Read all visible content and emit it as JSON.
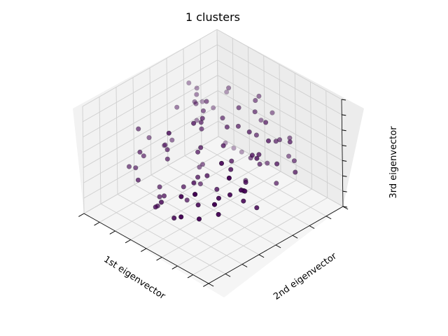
{
  "chart_data": {
    "type": "scatter",
    "projection": "3d",
    "title": "1 clusters",
    "xlabel": "1st eigenvector",
    "ylabel": "2nd eigenvector",
    "zlabel": "3rd eigenvector",
    "xlim": [
      -4,
      4
    ],
    "ylim": [
      -4,
      4
    ],
    "zlim": [
      -4,
      4
    ],
    "ticks": {
      "x": 8,
      "y": 8,
      "z": 7
    },
    "grid": true,
    "tick_labels_shown": false,
    "view": {
      "elev": 48,
      "azim": 134
    },
    "point_color": "#440154",
    "series": [
      {
        "x": [
          -2.1,
          -1.3,
          0.9,
          1.7,
          -0.4,
          2.3,
          -2.8,
          1.1,
          -0.9,
          0.2,
          2.9,
          -1.8,
          0.6,
          -2.5,
          1.4,
          -0.1,
          2.0,
          -1.1,
          0.4,
          -3.1,
          1.9,
          -0.6,
          2.6,
          -1.5,
          0.8,
          -2.3,
          1.2,
          -0.3,
          3.0,
          -0.8,
          1.6,
          -2.0,
          0.0,
          2.4,
          -1.2,
          0.7,
          -2.7,
          1.8,
          -0.5,
          2.2,
          -1.6,
          0.3,
          -3.3,
          1.3,
          -0.2,
          2.7,
          -1.9,
          0.5,
          -2.4,
          1.0,
          -0.7,
          2.1,
          -1.4,
          0.1,
          -2.9,
          1.5,
          -1.0,
          2.5,
          -0.4,
          0.9,
          -2.2,
          1.7,
          -1.7,
          0.2,
          3.2,
          -0.9,
          1.1,
          -2.6,
          0.6,
          -1.3,
          2.3,
          -0.1,
          1.9,
          -3.0,
          0.4,
          -1.1,
          2.8,
          -0.6,
          1.4,
          -2.1,
          0.0,
          -1.8,
          2.0,
          -0.3,
          1.6,
          -2.8,
          0.8,
          -1.5,
          2.6,
          -0.8,
          1.2,
          -2.5,
          0.3,
          -1.2,
          2.2,
          -0.5,
          1.8,
          -2.3,
          0.7,
          -1.6
        ],
        "y": [
          1.8,
          -2.4,
          0.6,
          2.9,
          -1.1,
          -0.3,
          2.2,
          -2.9,
          1.4,
          -0.6,
          1.1,
          -1.9,
          2.6,
          0.3,
          -1.4,
          2.0,
          -2.6,
          0.9,
          -0.2,
          1.6,
          2.4,
          -1.7,
          -0.9,
          1.2,
          -2.2,
          2.8,
          0.1,
          -1.2,
          2.1,
          -2.0,
          0.5,
          1.9,
          -0.7,
          2.7,
          -2.8,
          1.0,
          0.2,
          -1.5,
          2.3,
          -2.3,
          0.7,
          -0.4,
          1.3,
          2.5,
          -2.5,
          0.4,
          -1.0,
          1.7,
          -1.8,
          2.9,
          -0.1,
          -2.7,
          1.5,
          0.8,
          -1.3,
          2.2,
          -2.1,
          1.8,
          -0.8,
          0.0,
          2.6,
          -1.6,
          0.9,
          -2.4,
          1.4,
          2.0,
          -0.5,
          -1.9,
          2.7,
          0.3,
          -2.9,
          1.1,
          -1.1,
          0.6,
          2.4,
          -2.2,
          -0.3,
          1.9,
          -1.4,
          0.5,
          2.8,
          -2.6,
          1.2,
          -0.9,
          2.1,
          -1.7,
          0.1,
          2.5,
          -2.0,
          0.8,
          -0.6,
          1.6,
          -2.8,
          2.3,
          -1.2,
          0.4,
          -2.5,
          1.0,
          -0.2,
          1.7
        ],
        "z": [
          0.8,
          2.6,
          -0.4,
          1.5,
          -1.6,
          3.2,
          -0.9,
          0.3,
          2.1,
          -2.3,
          -0.2,
          1.1,
          -1.2,
          2.9,
          0.6,
          -0.7,
          1.8,
          -2.0,
          3.0,
          0.2,
          -1.4,
          2.4,
          -2.5,
          1.3,
          0.0,
          -1.0,
          3.4,
          -1.8,
          0.7,
          2.2,
          -0.5,
          -2.2,
          1.6,
          -0.1,
          2.8,
          -1.3,
          0.9,
          -2.7,
          1.0,
          0.4,
          -0.8,
          2.5,
          -1.5,
          -0.3,
          1.9,
          -2.4,
          3.1,
          0.5,
          -1.9,
          0.1,
          2.3,
          -1.1,
          -0.6,
          1.4,
          -2.6,
          2.0,
          0.6,
          -1.7,
          3.3,
          -0.9,
          1.2,
          -2.1,
          2.7,
          -0.2,
          -1.3,
          0.8,
          -2.8,
          1.7,
          -0.4,
          2.9,
          -1.0,
          0.3,
          -2.3,
          1.5,
          -0.7,
          2.4,
          -1.6,
          0.9,
          -0.1,
          3.0,
          -2.0,
          1.1,
          -1.4,
          2.6,
          -0.6,
          -2.5,
          1.3,
          0.0,
          -1.2,
          2.2,
          -1.8,
          0.5,
          -0.8,
          1.8,
          -2.9,
          2.1,
          -0.3,
          -1.5,
          0.7,
          2.5
        ]
      }
    ]
  }
}
